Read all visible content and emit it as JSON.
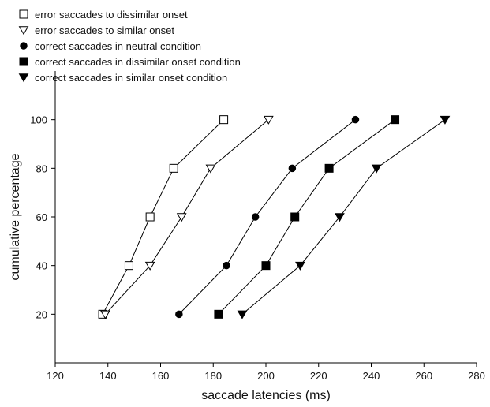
{
  "chart_data": {
    "type": "line",
    "title": "",
    "xlabel": "saccade latencies (ms)",
    "ylabel": "cumulative percentage",
    "xlim": [
      120,
      280
    ],
    "ylim": [
      0,
      120
    ],
    "x_ticks": [
      120,
      140,
      160,
      180,
      200,
      220,
      240,
      260,
      280
    ],
    "y_ticks": [
      20,
      40,
      60,
      80,
      100
    ],
    "grid": false,
    "legend_position": "top-left",
    "series": [
      {
        "name": "error saccades to dissimilar onset",
        "marker": "open-square",
        "x": [
          138,
          148,
          156,
          165,
          184
        ],
        "y": [
          20,
          40,
          60,
          80,
          100
        ]
      },
      {
        "name": "error saccades to similar onset",
        "marker": "open-triangle-down",
        "x": [
          139,
          156,
          168,
          179,
          201
        ],
        "y": [
          20,
          40,
          60,
          80,
          100
        ]
      },
      {
        "name": "correct saccades in neutral condition",
        "marker": "filled-circle",
        "x": [
          167,
          185,
          196,
          210,
          234
        ],
        "y": [
          20,
          40,
          60,
          80,
          100
        ]
      },
      {
        "name": "correct saccades in dissimilar onset condition",
        "marker": "filled-square",
        "x": [
          182,
          200,
          211,
          224,
          249
        ],
        "y": [
          20,
          40,
          60,
          80,
          100
        ]
      },
      {
        "name": "correct saccades in similar onset condition",
        "marker": "filled-triangle-down",
        "x": [
          191,
          213,
          228,
          242,
          268
        ],
        "y": [
          20,
          40,
          60,
          80,
          100
        ]
      }
    ]
  }
}
